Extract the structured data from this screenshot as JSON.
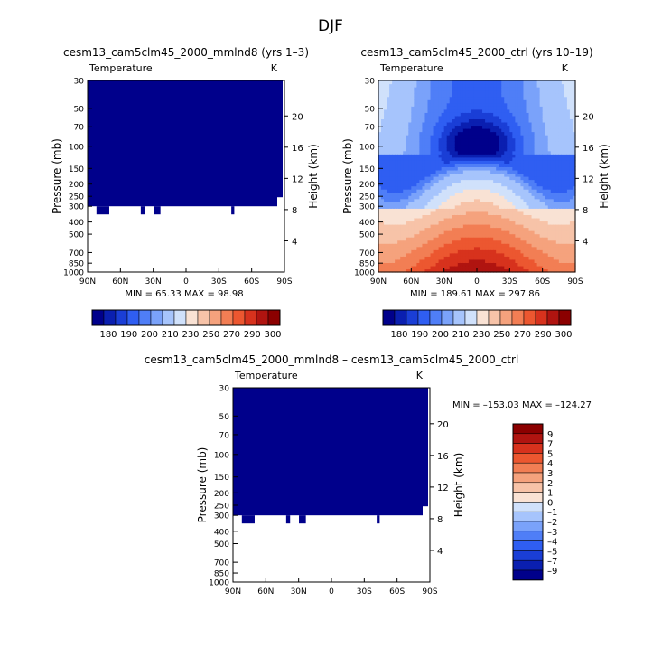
{
  "figure": {
    "title": "DJF"
  },
  "colors": {
    "fill_min": "#00008b",
    "background": "#ffffff",
    "palette": [
      "#00008b",
      "#0a1fb0",
      "#1a3ed6",
      "#2f5ef2",
      "#4f7ef7",
      "#7aa2fa",
      "#a6c4fc",
      "#d0e1fb",
      "#f9e2d4",
      "#f7c3a8",
      "#f5a27d",
      "#f27e54",
      "#ec5730",
      "#d7321d",
      "#b01410",
      "#8b0000"
    ]
  },
  "chart_data": [
    {
      "type": "heatmap",
      "title": "cesm13_cam5clm45_2000_mmlnd8 (yrs 1–3)",
      "left_label": "Temperature",
      "right_label": "K",
      "ylabel": "Pressure (mb)",
      "y2label": "Height (km)",
      "pressure_ticks": [
        "30",
        "50",
        "70",
        "100",
        "150",
        "200",
        "250",
        "300",
        "400",
        "500",
        "700",
        "850",
        "1000"
      ],
      "height_ticks": [
        "20",
        "16",
        "12",
        "8",
        "4"
      ],
      "lat_ticks": [
        "90N",
        "60N",
        "30N",
        "0",
        "30S",
        "60S",
        "90S"
      ],
      "ylim": [
        1000,
        30
      ],
      "xlim": [
        90,
        -90
      ],
      "stats": "MIN =  65.33    MAX =  98.98",
      "field": "uniform_low",
      "colorbar_labels": [
        "180",
        "190",
        "200",
        "210",
        "230",
        "250",
        "270",
        "290",
        "300"
      ]
    },
    {
      "type": "heatmap",
      "title": "cesm13_cam5clm45_2000_ctrl (yrs 10–19)",
      "left_label": "Temperature",
      "right_label": "K",
      "ylabel": "Pressure (mb)",
      "y2label": "Height (km)",
      "pressure_ticks": [
        "30",
        "50",
        "70",
        "100",
        "150",
        "200",
        "250",
        "300",
        "400",
        "500",
        "700",
        "850",
        "1000"
      ],
      "height_ticks": [
        "20",
        "16",
        "12",
        "8",
        "4"
      ],
      "lat_ticks": [
        "90N",
        "60N",
        "30N",
        "0",
        "30S",
        "60S",
        "90S"
      ],
      "ylim": [
        1000,
        30
      ],
      "xlim": [
        90,
        -90
      ],
      "stats": "MIN = 189.61    MAX = 297.86",
      "field": "zonal_temperature",
      "colorbar_labels": [
        "180",
        "190",
        "200",
        "210",
        "230",
        "250",
        "270",
        "290",
        "300"
      ]
    },
    {
      "type": "heatmap",
      "title": "cesm13_cam5clm45_2000_mmlnd8 – cesm13_cam5clm45_2000_ctrl",
      "left_label": "Temperature",
      "right_label": "K",
      "ylabel": "Pressure (mb)",
      "y2label": "Height (km)",
      "pressure_ticks": [
        "30",
        "50",
        "70",
        "100",
        "150",
        "200",
        "250",
        "300",
        "400",
        "500",
        "700",
        "850",
        "1000"
      ],
      "height_ticks": [
        "20",
        "16",
        "12",
        "8",
        "4"
      ],
      "lat_ticks": [
        "90N",
        "60N",
        "30N",
        "0",
        "30S",
        "60S",
        "90S"
      ],
      "ylim": [
        1000,
        30
      ],
      "xlim": [
        90,
        -90
      ],
      "stats": "MIN = –153.03   MAX = –124.27",
      "field": "uniform_low",
      "colorbar_labels": [
        "9",
        "7",
        "5",
        "4",
        "3",
        "2",
        "1",
        "0",
        "–1",
        "–2",
        "–3",
        "–4",
        "–5",
        "–7",
        "–9"
      ]
    }
  ]
}
